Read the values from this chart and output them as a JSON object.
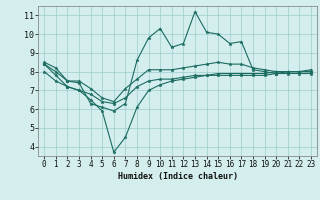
{
  "title": "",
  "xlabel": "Humidex (Indice chaleur)",
  "xlim": [
    -0.5,
    23.5
  ],
  "ylim": [
    3.5,
    11.5
  ],
  "yticks": [
    4,
    5,
    6,
    7,
    8,
    9,
    10,
    11
  ],
  "xticks": [
    0,
    1,
    2,
    3,
    4,
    5,
    6,
    7,
    8,
    9,
    10,
    11,
    12,
    13,
    14,
    15,
    16,
    17,
    18,
    19,
    20,
    21,
    22,
    23
  ],
  "bg_color": "#d4eeee",
  "grid_color": "#a0cccc",
  "line_color": "#1a6b60",
  "line1": [
    8.5,
    8.2,
    7.5,
    7.4,
    6.3,
    6.1,
    5.9,
    6.3,
    8.6,
    9.8,
    10.3,
    9.3,
    9.5,
    11.2,
    10.1,
    10.0,
    9.5,
    9.6,
    8.1,
    8.0,
    7.9,
    8.0,
    8.0,
    8.1
  ],
  "line2": [
    8.4,
    8.0,
    7.5,
    7.5,
    7.1,
    6.6,
    6.4,
    7.1,
    7.6,
    8.1,
    8.1,
    8.1,
    8.2,
    8.3,
    8.4,
    8.5,
    8.4,
    8.4,
    8.2,
    8.1,
    8.0,
    8.0,
    8.0,
    8.0
  ],
  "line3": [
    8.4,
    7.8,
    7.2,
    7.0,
    6.5,
    5.9,
    3.7,
    4.5,
    6.1,
    7.0,
    7.3,
    7.5,
    7.6,
    7.7,
    7.8,
    7.8,
    7.8,
    7.8,
    7.8,
    7.8,
    7.9,
    7.9,
    7.9,
    7.9
  ],
  "line4": [
    8.0,
    7.5,
    7.2,
    7.0,
    6.8,
    6.4,
    6.3,
    6.6,
    7.2,
    7.5,
    7.6,
    7.6,
    7.7,
    7.8,
    7.8,
    7.9,
    7.9,
    7.9,
    7.9,
    7.9,
    8.0,
    8.0,
    8.0,
    8.0
  ]
}
